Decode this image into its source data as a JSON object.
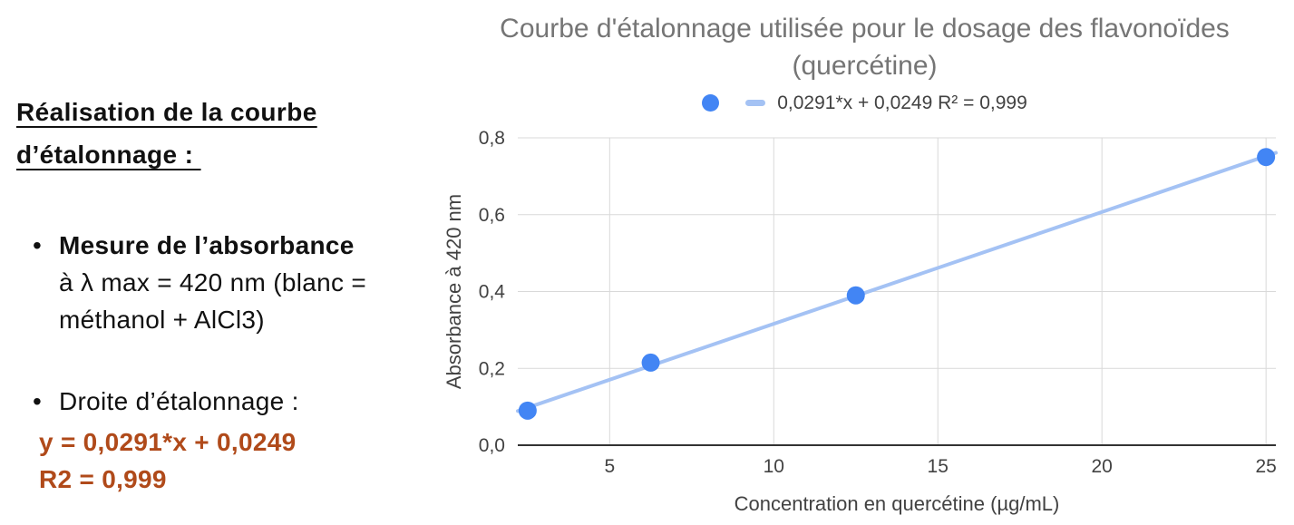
{
  "colors": {
    "accent": "#b04a1a",
    "point_blue": "#4285f4",
    "trend_blue": "#a4c2f4",
    "grid": "#d9d9d9",
    "axis": "#333333",
    "title_gray": "#757575",
    "chart_ink": "#424242"
  },
  "notes": {
    "heading_line1": "Réalisation de la courbe",
    "heading_line2": "d’étalonnage : ",
    "bullet1_line1": "Mesure de l’absorbance",
    "bullet1_line2": "à λ max = 420 nm (blanc =",
    "bullet1_line3": "méthanol + AlCl3)",
    "bullet2": "Droite d’étalonnage :",
    "equation": "y = 0,0291*x + 0,0249",
    "r_squared": "R2 = 0,999"
  },
  "chart_data": {
    "type": "scatter",
    "title": "Courbe d'étalonnage utilisée pour le dosage des flavonoïdes (quercétine)",
    "title_lines": [
      "Courbe d'étalonnage utilisée pour le dosage des flavonoïdes",
      "(quercétine)"
    ],
    "legend_label": "0,0291*x + 0,0249 R² = 0,999",
    "legend_position": "top",
    "xlabel": "Concentration en quercétine (µg/mL)",
    "ylabel": "Absorbance à 420 nm",
    "points": [
      {
        "x": 2.5,
        "y": 0.09
      },
      {
        "x": 6.25,
        "y": 0.215
      },
      {
        "x": 12.5,
        "y": 0.39
      },
      {
        "x": 25,
        "y": 0.75
      }
    ],
    "trendline": {
      "slope": 0.0291,
      "intercept": 0.0249,
      "r2": 0.999
    },
    "xlim": [
      2.2,
      25.3
    ],
    "ylim": [
      0,
      0.8
    ],
    "x_ticks": [
      5,
      10,
      15,
      20,
      25
    ],
    "x_tick_labels": [
      "5",
      "10",
      "15",
      "20",
      "25"
    ],
    "y_ticks": [
      0,
      0.2,
      0.4,
      0.6,
      0.8
    ],
    "y_tick_labels": [
      "0,0",
      "0,2",
      "0,4",
      "0,6",
      "0,8"
    ],
    "grid": true
  }
}
